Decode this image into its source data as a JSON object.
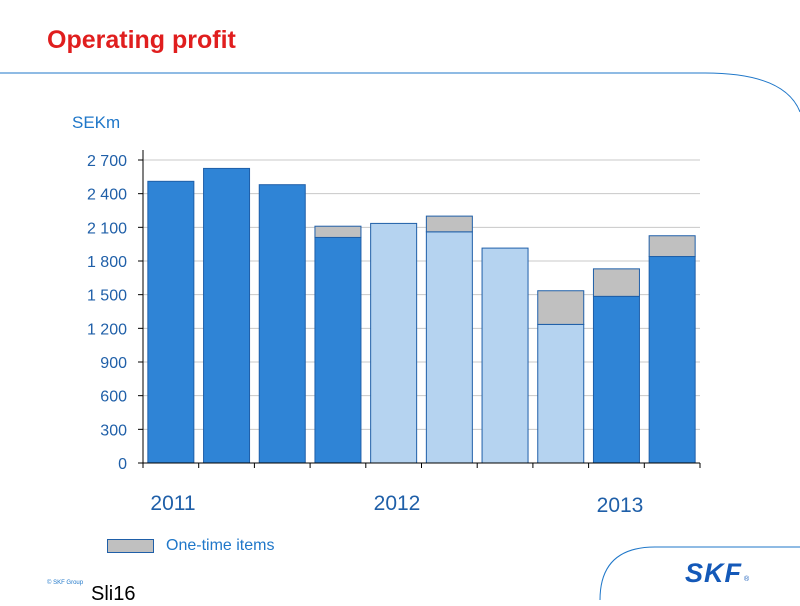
{
  "slide": {
    "title": "Operating profit",
    "copyright": "© SKF Group",
    "slide_number": "Sli16",
    "logo_text": "SKF",
    "logo_mark": "®"
  },
  "colors": {
    "title": "#e01e1e",
    "accent": "#1f77c9",
    "bar_dark": "#2f84d6",
    "bar_light": "#b5d3f0",
    "one_time": "#c0c0c0",
    "bar_border": "#1f5fa8"
  },
  "chart_data": {
    "type": "bar",
    "stacked": true,
    "ylabel": "SEKm",
    "ylim": [
      0,
      2700
    ],
    "yticks": [
      0,
      300,
      600,
      900,
      1200,
      1500,
      1800,
      2100,
      2400,
      2700
    ],
    "ytick_labels": [
      "0",
      "300",
      "600",
      "900",
      "1 200",
      "1 500",
      "1 800",
      "2 100",
      "2 400",
      "2 700"
    ],
    "grid": true,
    "year_labels": [
      "2011",
      "2012",
      "2013"
    ],
    "bars": [
      {
        "base": 2510,
        "one_time": 0,
        "shade": "dark"
      },
      {
        "base": 2625,
        "one_time": 0,
        "shade": "dark"
      },
      {
        "base": 2480,
        "one_time": 0,
        "shade": "dark"
      },
      {
        "base": 2010,
        "one_time": 100,
        "shade": "dark"
      },
      {
        "base": 2135,
        "one_time": 0,
        "shade": "light"
      },
      {
        "base": 2060,
        "one_time": 140,
        "shade": "light"
      },
      {
        "base": 1915,
        "one_time": 0,
        "shade": "light"
      },
      {
        "base": 1235,
        "one_time": 300,
        "shade": "light"
      },
      {
        "base": 1485,
        "one_time": 245,
        "shade": "dark"
      },
      {
        "base": 1840,
        "one_time": 185,
        "shade": "dark"
      }
    ],
    "series": [
      {
        "name": "One-time items"
      }
    ],
    "legend": "bottom-left"
  }
}
